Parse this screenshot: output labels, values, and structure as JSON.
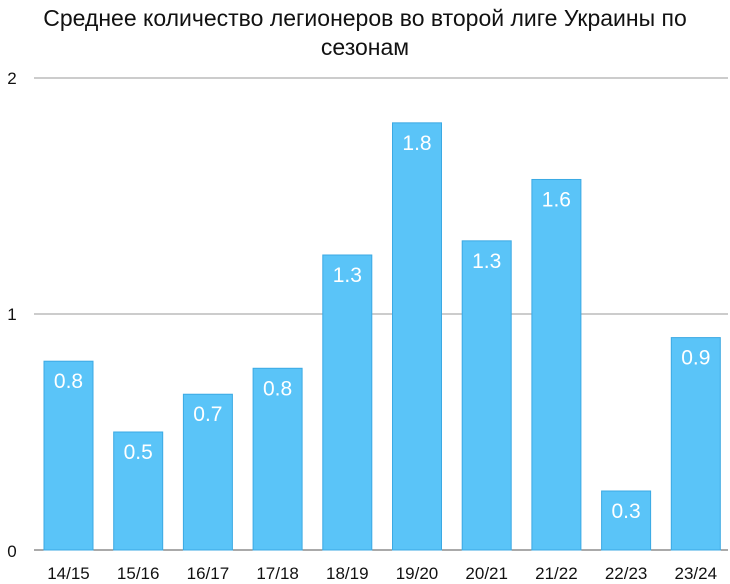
{
  "chart_data": {
    "type": "bar",
    "title": "Среднее количество легионеров во второй лиге Украины по сезонам",
    "xlabel": "",
    "ylabel": "",
    "ylim": [
      0,
      2
    ],
    "yticks": [
      "0",
      "1",
      "2"
    ],
    "grid": true,
    "bar_color": "#5ac4f8",
    "bar_edge_color": "#3ba9e3",
    "categories": [
      "14/15",
      "15/16",
      "16/17",
      "17/18",
      "18/19",
      "19/20",
      "20/21",
      "21/22",
      "22/23",
      "23/24"
    ],
    "values": [
      0.8,
      0.5,
      0.66,
      0.77,
      1.25,
      1.81,
      1.31,
      1.57,
      0.25,
      0.9
    ],
    "labels": [
      "0.8",
      "0.5",
      "0.7",
      "0.8",
      "1.3",
      "1.8",
      "1.3",
      "1.6",
      "0.3",
      "0.9"
    ]
  }
}
